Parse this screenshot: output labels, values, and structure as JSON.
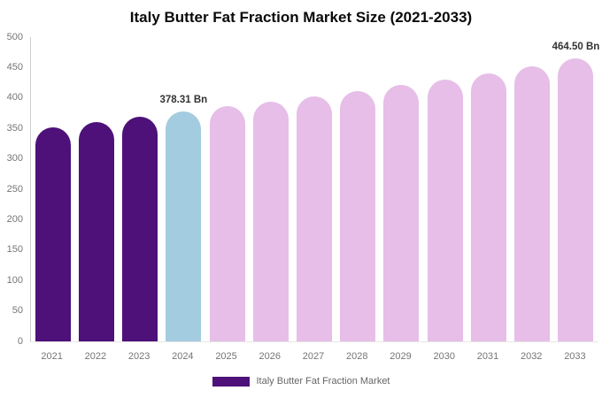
{
  "title": "Italy Butter Fat Fraction Market Size (2021-2033)",
  "legend": {
    "label": "Italy Butter Fat Fraction Market"
  },
  "colors": {
    "historical": "#4D1179",
    "base_year": "#A4CCE0",
    "forecast": "#E6BEE8",
    "axis_line": "#cccccc",
    "baseline": "#e7e7e7",
    "tick_text": "#757575",
    "value_label_text": "#333333",
    "title_text": "#0a0a0a",
    "legend_text": "#666666",
    "legend_swatch": "#4D1179"
  },
  "chart_data": {
    "type": "bar",
    "title": "Italy Butter Fat Fraction Market Size (2021-2033)",
    "categories": [
      "2021",
      "2022",
      "2023",
      "2024",
      "2025",
      "2026",
      "2027",
      "2028",
      "2029",
      "2030",
      "2031",
      "2032",
      "2033"
    ],
    "values": [
      352,
      360,
      369,
      378.31,
      386,
      394,
      403,
      412,
      421,
      430,
      441,
      452,
      464.5
    ],
    "groups": [
      "historical",
      "historical",
      "historical",
      "base_year",
      "forecast",
      "forecast",
      "forecast",
      "forecast",
      "forecast",
      "forecast",
      "forecast",
      "forecast",
      "forecast"
    ],
    "value_labels": [
      {
        "category": "2024",
        "text": "378.31 Bn"
      },
      {
        "category": "2033",
        "text": "464.50 Bn"
      }
    ],
    "xlabel": "",
    "ylabel": "",
    "ylim": [
      0,
      500
    ],
    "y_ticks": [
      500,
      450,
      400,
      350,
      300,
      250,
      200,
      150,
      100,
      50,
      0
    ],
    "grid": false,
    "legend_entries": [
      "Italy Butter Fat Fraction Market"
    ],
    "legend_position": "bottom-center",
    "units": "Bn"
  }
}
